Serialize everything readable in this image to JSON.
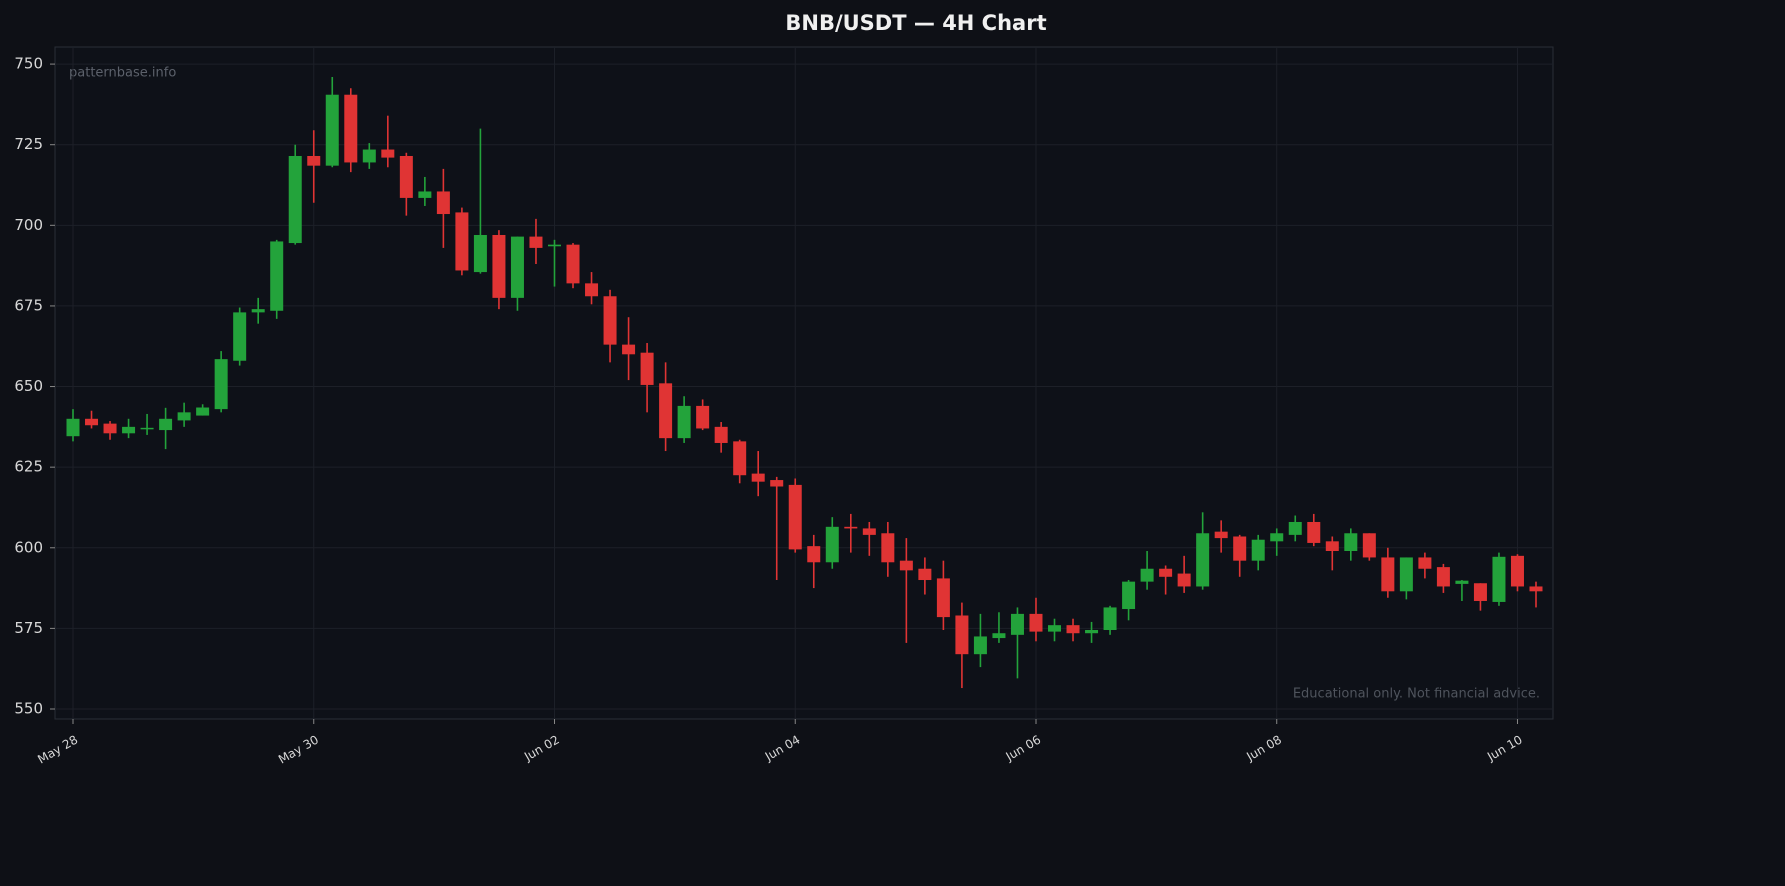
{
  "chart_data": {
    "type": "candlestick",
    "title": "BNB/USDT — 4H Chart",
    "watermark": "patternbase.info",
    "disclaimer": "Educational only. Not financial advice.",
    "categories": [
      "May 28",
      null,
      null,
      null,
      null,
      null,
      null,
      null,
      null,
      null,
      null,
      null,
      null,
      "May 30",
      null,
      null,
      null,
      null,
      null,
      null,
      null,
      null,
      null,
      null,
      null,
      null,
      "Jun 02",
      null,
      null,
      null,
      null,
      null,
      null,
      null,
      null,
      null,
      null,
      null,
      null,
      "Jun 04",
      null,
      null,
      null,
      null,
      null,
      null,
      null,
      null,
      null,
      null,
      null,
      null,
      "Jun 06",
      null,
      null,
      null,
      null,
      null,
      null,
      null,
      null,
      null,
      null,
      null,
      null,
      "Jun 08",
      null,
      null,
      null,
      null,
      null,
      null,
      null,
      null,
      null,
      null,
      null,
      null,
      "Jun 10",
      null
    ],
    "open": [
      634.6,
      640,
      638.5,
      635.5,
      637,
      636.5,
      639.5,
      641,
      643,
      658,
      673,
      673.5,
      694.5,
      721.5,
      718.5,
      740.5,
      719.5,
      723.5,
      721.5,
      708.5,
      710.5,
      704,
      685.5,
      697,
      677.5,
      696.5,
      693.5,
      694,
      682,
      678,
      663,
      660.5,
      651,
      634,
      644,
      637.5,
      633,
      623,
      621,
      619.5,
      600.5,
      595.5,
      606.5,
      606,
      604.5,
      596,
      593.5,
      590.5,
      579,
      567,
      572,
      573,
      579.5,
      574,
      576,
      573.5,
      574.5,
      581,
      589.5,
      593.5,
      592,
      588,
      605,
      603.5,
      596,
      602,
      604,
      608,
      602,
      599,
      604.5,
      597,
      586.5,
      597,
      594,
      588.8,
      589,
      583.2,
      597.5,
      588
    ],
    "high": [
      643,
      642.5,
      639.3,
      640,
      641.5,
      643.4,
      645,
      644.5,
      661,
      674.5,
      677.5,
      695.5,
      725,
      729.5,
      746,
      742.5,
      725.5,
      734,
      722.5,
      715,
      717.5,
      705.5,
      730,
      698.5,
      696.5,
      702,
      695.5,
      694.5,
      685.5,
      680,
      671.5,
      663.5,
      657.5,
      647,
      646,
      639,
      633.5,
      630,
      622,
      621.5,
      604,
      609.5,
      610.5,
      608,
      608,
      603,
      597,
      596,
      583,
      579.5,
      580,
      581.5,
      584.5,
      578,
      578,
      577,
      582,
      590,
      599,
      594.5,
      597.5,
      611,
      608.5,
      604,
      604,
      606,
      610,
      610.5,
      603.5,
      606,
      604.5,
      600,
      597,
      598.5,
      595,
      590,
      589,
      598.5,
      598,
      589.5
    ],
    "low": [
      633,
      637,
      633.5,
      634,
      635,
      630.6,
      637.5,
      641,
      642,
      656.5,
      669.5,
      671,
      694,
      707,
      718,
      716.5,
      717.5,
      718,
      703,
      706,
      693,
      684.5,
      685,
      674,
      673.5,
      688,
      681,
      680.5,
      675.5,
      657.5,
      652,
      642,
      630,
      632.5,
      636.5,
      629.5,
      620,
      616,
      590,
      598.5,
      587.5,
      593.5,
      598.5,
      597.5,
      591,
      570.5,
      585.5,
      574.5,
      556.5,
      563,
      570.5,
      559.5,
      571,
      571,
      571,
      570.5,
      573,
      577.5,
      587,
      585.5,
      586,
      587,
      598.5,
      591,
      593,
      597.5,
      602,
      600.5,
      593,
      596,
      596,
      584.5,
      584,
      590.5,
      586,
      583.5,
      580.5,
      582,
      586.5,
      581.5
    ],
    "close": [
      640,
      638,
      635.5,
      637.5,
      637.2,
      640,
      642,
      643.5,
      658.5,
      673,
      674,
      695,
      721.5,
      718.5,
      740.5,
      719.5,
      723.5,
      721,
      708.5,
      710.5,
      703.5,
      686,
      697,
      677.5,
      696.5,
      693,
      694,
      682,
      678,
      663,
      660,
      650.5,
      634,
      644,
      637,
      632.5,
      622.5,
      620.5,
      619,
      599.5,
      595.5,
      606.5,
      606,
      604,
      595.5,
      593,
      590,
      578.5,
      567,
      572.5,
      573.5,
      579.5,
      574,
      576,
      573.5,
      574.5,
      581.5,
      589.5,
      593.5,
      591,
      588,
      604.5,
      603,
      596,
      602.5,
      604.5,
      608,
      601.5,
      599,
      604.5,
      597,
      586.5,
      597,
      593.5,
      588,
      589.8,
      583.5,
      597.2,
      588,
      586.5
    ],
    "up_color": "#23a33b",
    "down_color": "#e03434",
    "ylim": [
      546.9,
      755.3
    ],
    "yticks": [
      550,
      575,
      600,
      625,
      650,
      675,
      700,
      725,
      750
    ],
    "grid": true
  }
}
